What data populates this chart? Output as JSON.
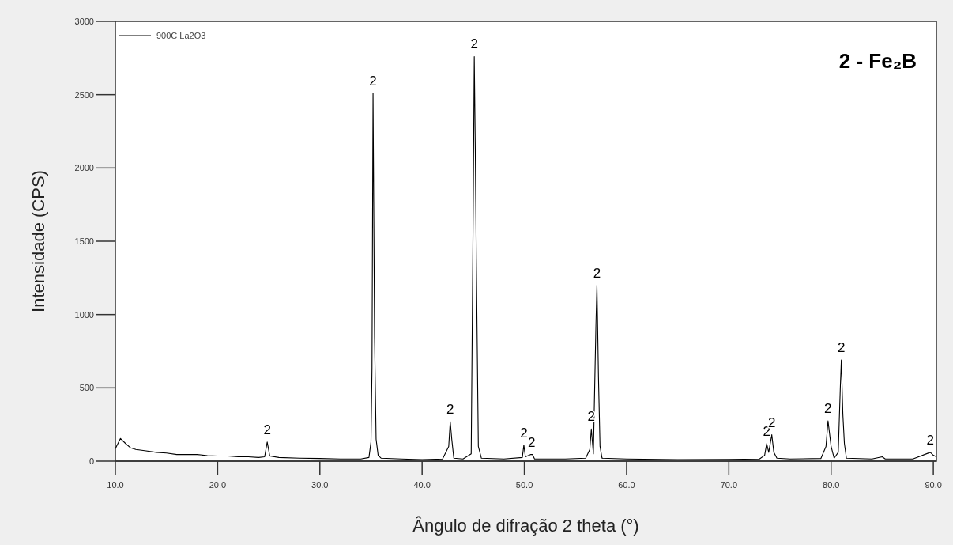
{
  "chart_data": {
    "type": "line",
    "xlabel": "Ângulo de difração 2 theta (°)",
    "ylabel": "Intensidade (CPS)",
    "xlim": [
      10,
      90.3
    ],
    "ylim": [
      0,
      3000
    ],
    "xticks": [
      {
        "value": 10,
        "label": "10.0"
      },
      {
        "value": 20,
        "label": "20.0"
      },
      {
        "value": 30,
        "label": "30.0"
      },
      {
        "value": 40,
        "label": "40.0"
      },
      {
        "value": 50,
        "label": "50.0"
      },
      {
        "value": 60,
        "label": "60.0"
      },
      {
        "value": 70,
        "label": "70.0"
      },
      {
        "value": 80,
        "label": "80.0"
      },
      {
        "value": 90,
        "label": "90.0"
      }
    ],
    "yticks": [
      0,
      500,
      1000,
      1500,
      2000,
      2500,
      3000
    ],
    "grid": false,
    "legend": "top left",
    "line_style": "solid",
    "series": [
      {
        "name": "900C La2O3",
        "color": "#000000",
        "x": [
          10.0,
          10.5,
          11,
          11.5,
          12,
          13,
          14,
          15,
          16,
          17,
          18,
          19,
          20,
          21,
          22,
          23,
          24,
          24.6,
          24.85,
          25.1,
          26,
          28,
          30,
          32,
          34,
          34.8,
          35.0,
          35.1,
          35.2,
          35.35,
          35.5,
          35.7,
          36,
          38,
          40,
          42,
          42.6,
          42.75,
          42.9,
          43.1,
          44,
          44.8,
          45.0,
          45.1,
          45.2,
          45.3,
          45.5,
          45.8,
          48,
          49.8,
          49.95,
          50.1,
          50.6,
          50.8,
          51,
          54,
          56,
          56.4,
          56.55,
          56.75,
          57.0,
          57.1,
          57.25,
          57.4,
          57.6,
          60,
          65,
          70,
          73,
          73.5,
          73.7,
          73.9,
          74.2,
          74.4,
          74.7,
          76,
          79,
          79.5,
          79.7,
          80,
          80.3,
          80.7,
          80.9,
          81.0,
          81.15,
          81.3,
          81.5,
          84,
          85,
          85.3,
          88,
          89.7,
          90,
          90.3
        ],
        "values": [
          85,
          155,
          120,
          90,
          80,
          70,
          60,
          55,
          45,
          45,
          45,
          38,
          35,
          35,
          30,
          30,
          25,
          30,
          130,
          35,
          25,
          20,
          18,
          15,
          15,
          25,
          130,
          640,
          2510,
          850,
          150,
          40,
          20,
          15,
          10,
          15,
          100,
          270,
          150,
          20,
          15,
          50,
          1750,
          2760,
          2130,
          1380,
          100,
          20,
          15,
          25,
          110,
          30,
          45,
          45,
          15,
          15,
          20,
          80,
          220,
          50,
          930,
          1200,
          570,
          100,
          20,
          15,
          10,
          12,
          15,
          40,
          120,
          60,
          180,
          60,
          20,
          15,
          18,
          100,
          275,
          100,
          20,
          60,
          500,
          690,
          320,
          120,
          20,
          15,
          30,
          15,
          15,
          60,
          40,
          30
        ]
      }
    ],
    "annotations": [
      "2 - Fe₂B",
      {
        "text": "2",
        "x": 24.85,
        "y": 130
      },
      {
        "text": "2",
        "x": 35.2,
        "y": 2510
      },
      {
        "text": "2",
        "x": 42.75,
        "y": 270
      },
      {
        "text": "2",
        "x": 45.1,
        "y": 2760
      },
      {
        "text": "2",
        "x": 49.95,
        "y": 110
      },
      {
        "text": "2",
        "x": 50.7,
        "y": 45
      },
      {
        "text": "2",
        "x": 56.55,
        "y": 220
      },
      {
        "text": "2",
        "x": 57.1,
        "y": 1200
      },
      {
        "text": "2",
        "x": 73.7,
        "y": 120
      },
      {
        "text": "2",
        "x": 74.2,
        "y": 180
      },
      {
        "text": "2",
        "x": 79.7,
        "y": 275
      },
      {
        "text": "2",
        "x": 81.0,
        "y": 690
      },
      {
        "text": "2",
        "x": 89.7,
        "y": 60
      }
    ]
  }
}
